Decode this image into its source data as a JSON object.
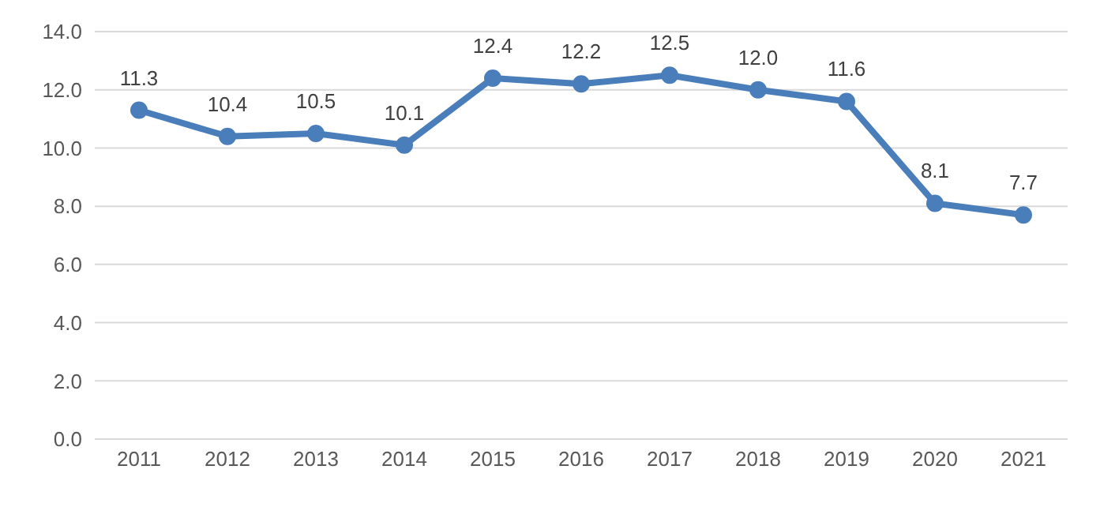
{
  "chart_data": {
    "type": "line",
    "categories": [
      "2011",
      "2012",
      "2013",
      "2014",
      "2015",
      "2016",
      "2017",
      "2018",
      "2019",
      "2020",
      "2021"
    ],
    "series": [
      {
        "color": "#4a7ebb",
        "values": [
          11.3,
          10.4,
          10.5,
          10.1,
          12.4,
          12.2,
          12.5,
          12.0,
          11.6,
          8.1,
          7.7
        ],
        "value_labels": [
          "11.3",
          "10.4",
          "10.5",
          "10.1",
          "12.4",
          "12.2",
          "12.5",
          "12.0",
          "11.6",
          "8.1",
          "7.7"
        ]
      }
    ],
    "ylim": [
      0,
      14
    ],
    "yticks": [
      {
        "value": 0,
        "label": "0.0"
      },
      {
        "value": 2,
        "label": "2.0"
      },
      {
        "value": 4,
        "label": "4.0"
      },
      {
        "value": 6,
        "label": "6.0"
      },
      {
        "value": 8,
        "label": "8.0"
      },
      {
        "value": 10,
        "label": "10.0"
      },
      {
        "value": 12,
        "label": "12.0"
      },
      {
        "value": 14,
        "label": "14.0"
      }
    ],
    "grid": "y",
    "legend": false,
    "marker": "circle",
    "line_style": "solid"
  }
}
